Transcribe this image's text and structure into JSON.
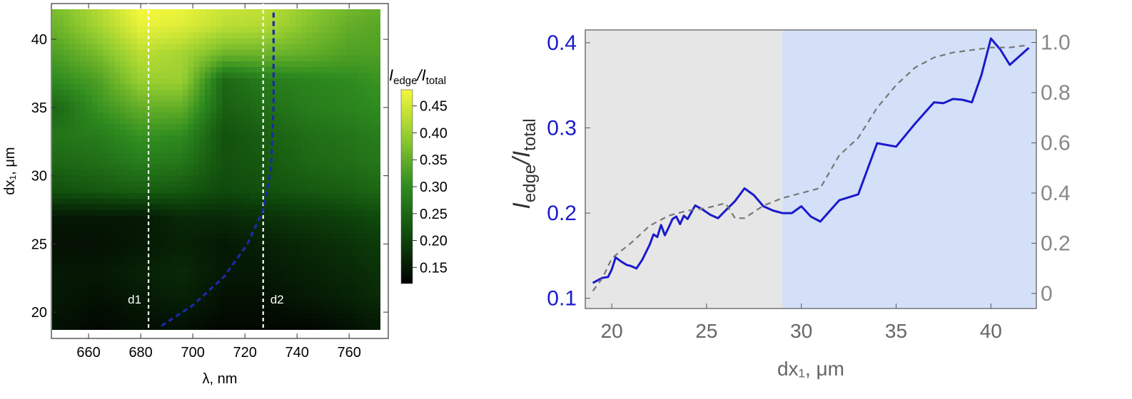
{
  "colors": {
    "map_low": "#000000",
    "map_mid": "#2e8b1f",
    "map_high": "#f4f73b",
    "curve_blue": "#1a1acc",
    "region_gray": "#e6e6e6",
    "region_blue": "#d3e0f7",
    "axis_gray": "#888888"
  },
  "chart_data": [
    {
      "type": "heatmap",
      "xlabel": "λ, nm",
      "ylabel": "dx₁, μm",
      "xlim": [
        646,
        772
      ],
      "ylim": [
        18.7,
        42.2
      ],
      "xticks": [
        660,
        680,
        700,
        720,
        740,
        760
      ],
      "yticks": [
        20,
        25,
        30,
        35,
        40
      ],
      "colorbar": {
        "title": "I_edge/I_total",
        "title_main": "I",
        "title_sub1": "edge",
        "title_sep": "/I",
        "title_sub2": "total",
        "range": [
          0.12,
          0.48
        ],
        "ticks": [
          "0.45",
          "0.40",
          "0.35",
          "0.30",
          "0.25",
          "0.20",
          "0.15"
        ],
        "tick_values": [
          0.45,
          0.4,
          0.35,
          0.3,
          0.25,
          0.2,
          0.15
        ]
      },
      "annotations": [
        {
          "label": "d1",
          "x": 683,
          "style": "white-dashed-vertical"
        },
        {
          "label": "d2",
          "x": 727,
          "style": "white-dashed-vertical"
        }
      ],
      "boundary_curve": {
        "style": "blue-dashed",
        "points": [
          [
            688,
            19
          ],
          [
            700,
            20.5
          ],
          [
            712,
            22.6
          ],
          [
            721,
            25
          ],
          [
            727,
            27.5
          ],
          [
            730,
            30.5
          ],
          [
            731,
            35
          ],
          [
            731,
            42
          ]
        ]
      },
      "field": {
        "x": [
          648,
          664,
          680,
          696,
          712,
          728,
          744,
          760,
          770
        ],
        "y": [
          19,
          21,
          23,
          25,
          27,
          29,
          31,
          33,
          35,
          37,
          39,
          41,
          42
        ],
        "z": [
          [
            0.14,
            0.13,
            0.14,
            0.14,
            0.13,
            0.13,
            0.13,
            0.14,
            0.15
          ],
          [
            0.15,
            0.14,
            0.15,
            0.16,
            0.14,
            0.14,
            0.15,
            0.16,
            0.17
          ],
          [
            0.15,
            0.15,
            0.16,
            0.17,
            0.15,
            0.15,
            0.16,
            0.17,
            0.18
          ],
          [
            0.14,
            0.14,
            0.15,
            0.16,
            0.15,
            0.16,
            0.17,
            0.18,
            0.19
          ],
          [
            0.15,
            0.15,
            0.15,
            0.17,
            0.17,
            0.18,
            0.19,
            0.2,
            0.21
          ],
          [
            0.22,
            0.23,
            0.24,
            0.23,
            0.21,
            0.22,
            0.23,
            0.24,
            0.25
          ],
          [
            0.25,
            0.26,
            0.28,
            0.27,
            0.22,
            0.23,
            0.25,
            0.26,
            0.27
          ],
          [
            0.27,
            0.28,
            0.31,
            0.3,
            0.22,
            0.24,
            0.26,
            0.27,
            0.28
          ],
          [
            0.25,
            0.31,
            0.35,
            0.35,
            0.24,
            0.26,
            0.28,
            0.29,
            0.3
          ],
          [
            0.3,
            0.33,
            0.4,
            0.4,
            0.25,
            0.28,
            0.29,
            0.3,
            0.31
          ],
          [
            0.33,
            0.37,
            0.43,
            0.41,
            0.36,
            0.36,
            0.35,
            0.33,
            0.33
          ],
          [
            0.36,
            0.41,
            0.47,
            0.46,
            0.43,
            0.42,
            0.38,
            0.35,
            0.34
          ],
          [
            0.37,
            0.42,
            0.48,
            0.47,
            0.44,
            0.43,
            0.39,
            0.36,
            0.35
          ]
        ]
      }
    },
    {
      "type": "line",
      "xlabel": "dx₁, μm",
      "ylabel": "I_edge/I_total",
      "xlim": [
        18.6,
        42.4
      ],
      "ylim": [
        0.088,
        0.415
      ],
      "y2lim": [
        -0.06,
        1.05
      ],
      "xticks": [
        20,
        25,
        30,
        35,
        40
      ],
      "yticks": [
        "0.1",
        "0.2",
        "0.3",
        "0.4"
      ],
      "y2ticks": [
        "0",
        "0.2",
        "0.4",
        "0.6",
        "0.8",
        "1.0"
      ],
      "regions": [
        {
          "x": [
            18.6,
            29.0
          ],
          "color": "gray"
        },
        {
          "x": [
            29.0,
            42.4
          ],
          "color": "blue"
        }
      ],
      "series": [
        {
          "axis": "left",
          "style": "solid",
          "x": [
            19,
            19.5,
            19.8,
            20,
            20.2,
            20.5,
            20.8,
            21,
            21.3,
            21.6,
            22,
            22.2,
            22.4,
            22.6,
            22.8,
            23,
            23.2,
            23.4,
            23.6,
            23.8,
            24,
            24.4,
            24.8,
            25.2,
            25.6,
            26,
            26.5,
            27,
            27.5,
            28,
            28.5,
            29,
            29.5,
            30,
            30.5,
            31,
            32,
            33,
            34,
            35,
            36,
            37,
            37.5,
            38,
            38.5,
            39,
            39.5,
            40,
            40.5,
            41,
            42
          ],
          "y": [
            0.118,
            0.124,
            0.125,
            0.134,
            0.148,
            0.143,
            0.139,
            0.138,
            0.135,
            0.145,
            0.163,
            0.175,
            0.172,
            0.186,
            0.174,
            0.183,
            0.193,
            0.196,
            0.187,
            0.197,
            0.193,
            0.209,
            0.204,
            0.198,
            0.194,
            0.203,
            0.214,
            0.229,
            0.221,
            0.208,
            0.203,
            0.2,
            0.2,
            0.208,
            0.196,
            0.19,
            0.215,
            0.222,
            0.282,
            0.278,
            0.305,
            0.33,
            0.329,
            0.334,
            0.333,
            0.33,
            0.362,
            0.405,
            0.392,
            0.374,
            0.394
          ]
        },
        {
          "axis": "right",
          "style": "dashed",
          "x": [
            19,
            19.5,
            20,
            21,
            22,
            23,
            24,
            25,
            26,
            26.5,
            27,
            28,
            29,
            30,
            31,
            32,
            33,
            34,
            35,
            36,
            37,
            38,
            39,
            40,
            41,
            42
          ],
          "y": [
            0.01,
            0.06,
            0.14,
            0.2,
            0.27,
            0.31,
            0.33,
            0.34,
            0.36,
            0.3,
            0.3,
            0.35,
            0.38,
            0.4,
            0.42,
            0.55,
            0.62,
            0.74,
            0.83,
            0.9,
            0.94,
            0.96,
            0.97,
            0.98,
            0.98,
            0.99
          ]
        }
      ]
    }
  ]
}
